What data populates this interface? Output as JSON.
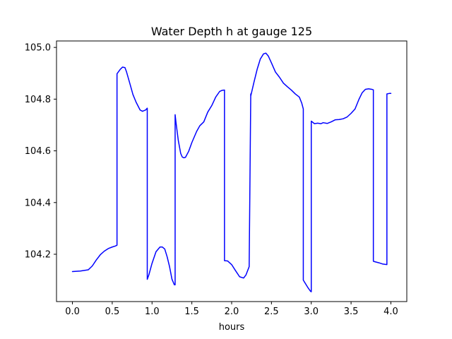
{
  "chart_data": {
    "type": "line",
    "title": "Water Depth h at gauge 125",
    "xlabel": "hours",
    "ylabel": "",
    "xlim": [
      -0.2,
      4.2
    ],
    "ylim": [
      104.017,
      105.025
    ],
    "x_ticks": [
      0.0,
      0.5,
      1.0,
      1.5,
      2.0,
      2.5,
      3.0,
      3.5,
      4.0
    ],
    "x_tick_labels": [
      "0.0",
      "0.5",
      "1.0",
      "1.5",
      "2.0",
      "2.5",
      "3.0",
      "3.5",
      "4.0"
    ],
    "y_ticks": [
      104.2,
      104.4,
      104.6,
      104.8,
      105.0
    ],
    "y_tick_labels": [
      "104.2",
      "104.4",
      "104.6",
      "104.8",
      "105.0"
    ],
    "grid": false,
    "series": [
      {
        "color": "#0000ff",
        "x": [
          0.0,
          0.1,
          0.2,
          0.25,
          0.3,
          0.35,
          0.4,
          0.45,
          0.5,
          0.54,
          0.56,
          0.56,
          0.6,
          0.63,
          0.66,
          0.68,
          0.72,
          0.76,
          0.8,
          0.85,
          0.88,
          0.92,
          0.94,
          0.94,
          0.96,
          1.0,
          1.05,
          1.1,
          1.13,
          1.16,
          1.19,
          1.22,
          1.25,
          1.28,
          1.29,
          1.29,
          1.3,
          1.33,
          1.36,
          1.38,
          1.4,
          1.42,
          1.46,
          1.5,
          1.56,
          1.6,
          1.65,
          1.7,
          1.75,
          1.8,
          1.85,
          1.88,
          1.91,
          1.91,
          1.95,
          2.0,
          2.05,
          2.1,
          2.15,
          2.18,
          2.22,
          2.24,
          2.24,
          2.28,
          2.32,
          2.36,
          2.4,
          2.43,
          2.46,
          2.5,
          2.55,
          2.6,
          2.65,
          2.7,
          2.75,
          2.8,
          2.85,
          2.88,
          2.9,
          2.9,
          2.93,
          2.96,
          2.99,
          3.0,
          3.0,
          3.04,
          3.08,
          3.12,
          3.15,
          3.2,
          3.25,
          3.3,
          3.35,
          3.4,
          3.45,
          3.5,
          3.55,
          3.6,
          3.64,
          3.68,
          3.72,
          3.76,
          3.78,
          3.78,
          3.8,
          3.85,
          3.9,
          3.95,
          3.95,
          3.98,
          4.0
        ],
        "y": [
          104.133,
          104.135,
          104.14,
          104.155,
          104.178,
          104.198,
          104.212,
          104.222,
          104.228,
          104.232,
          104.235,
          104.898,
          104.915,
          104.924,
          104.922,
          104.905,
          104.862,
          104.818,
          104.788,
          104.758,
          104.753,
          104.758,
          104.765,
          104.103,
          104.12,
          104.165,
          104.21,
          104.228,
          104.228,
          104.22,
          104.19,
          104.152,
          104.104,
          104.082,
          104.082,
          104.74,
          104.712,
          104.64,
          104.59,
          104.576,
          104.573,
          104.575,
          104.598,
          104.632,
          104.675,
          104.697,
          104.712,
          104.75,
          104.775,
          104.808,
          104.83,
          104.834,
          104.835,
          104.175,
          104.174,
          104.16,
          104.136,
          104.113,
          104.108,
          104.12,
          104.152,
          104.82,
          104.812,
          104.865,
          104.915,
          104.955,
          104.975,
          104.978,
          104.967,
          104.94,
          104.905,
          104.885,
          104.862,
          104.848,
          104.835,
          104.82,
          104.808,
          104.785,
          104.762,
          104.1,
          104.085,
          104.07,
          104.057,
          104.055,
          104.715,
          104.705,
          104.707,
          104.705,
          104.709,
          104.706,
          104.712,
          104.72,
          104.721,
          104.724,
          104.731,
          104.745,
          104.762,
          104.8,
          104.825,
          104.838,
          104.84,
          104.838,
          104.836,
          104.173,
          104.171,
          104.167,
          104.162,
          104.16,
          104.82,
          104.822,
          104.822
        ]
      }
    ]
  }
}
